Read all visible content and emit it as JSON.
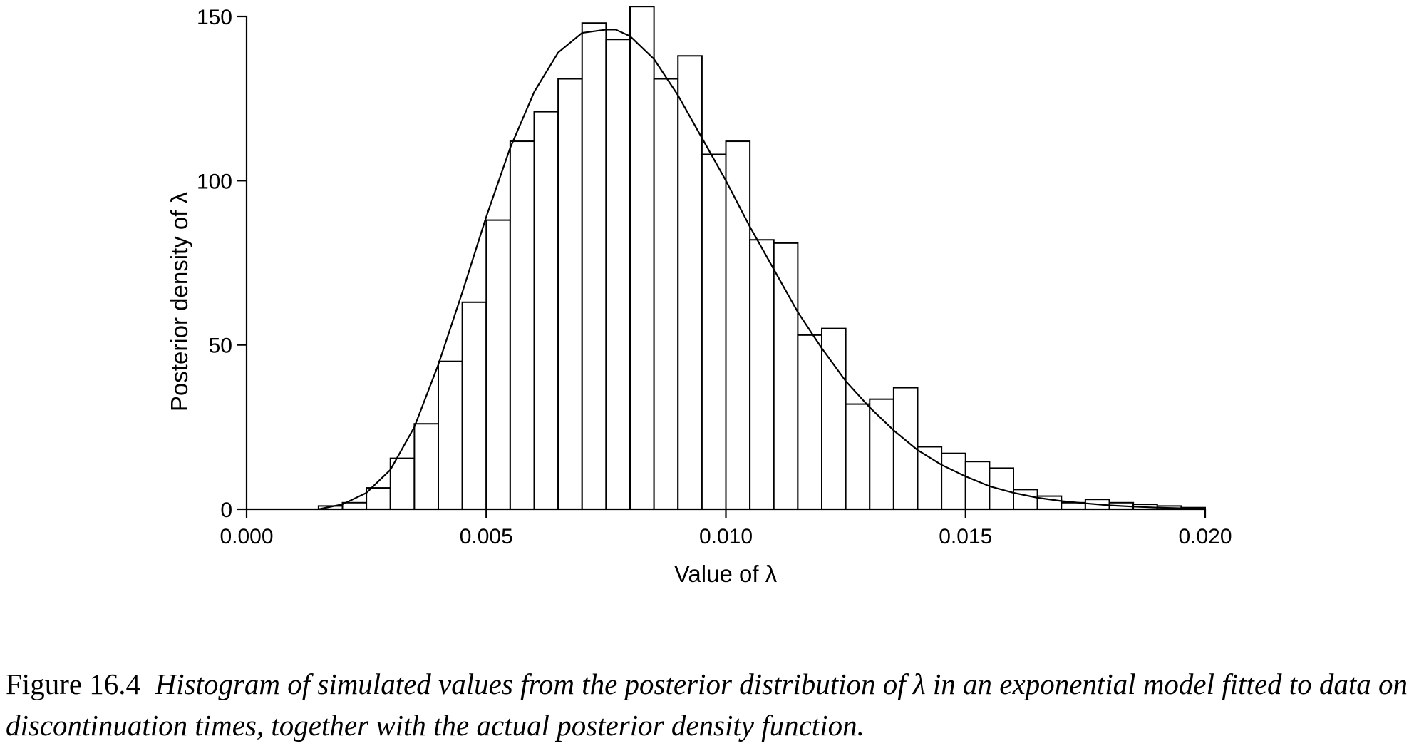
{
  "chart_data": {
    "type": "bar",
    "title": "",
    "xlabel": "Value of λ",
    "ylabel": "Posterior density of λ",
    "xlim": [
      0.0,
      0.02
    ],
    "ylim": [
      0,
      150
    ],
    "x_ticks": [
      "0.000",
      "0.005",
      "0.010",
      "0.015",
      "0.020"
    ],
    "x_tick_values": [
      0.0,
      0.005,
      0.01,
      0.015,
      0.02
    ],
    "y_ticks": [
      "0",
      "50",
      "100",
      "150"
    ],
    "y_tick_values": [
      0,
      50,
      100,
      150
    ],
    "grid": false,
    "bin_width": 0.0005,
    "bin_starts": [
      0.0015,
      0.002,
      0.0025,
      0.003,
      0.0035,
      0.004,
      0.0045,
      0.005,
      0.0055,
      0.006,
      0.0065,
      0.007,
      0.0075,
      0.008,
      0.0085,
      0.009,
      0.0095,
      0.01,
      0.0105,
      0.011,
      0.0115,
      0.012,
      0.0125,
      0.013,
      0.0135,
      0.014,
      0.0145,
      0.015,
      0.0155,
      0.016,
      0.0165,
      0.017,
      0.0175,
      0.018,
      0.0185,
      0.019,
      0.0195
    ],
    "values": [
      1,
      2,
      6.5,
      15.5,
      26,
      45,
      63,
      88,
      112,
      121,
      131,
      148,
      143,
      153,
      131,
      138,
      108,
      112,
      82,
      81,
      53,
      55,
      32,
      33.5,
      37,
      19,
      17,
      14.5,
      12.5,
      6,
      4,
      2,
      3,
      2,
      1.5,
      1,
      0.5
    ],
    "density_curve": {
      "x": [
        0.0015,
        0.002,
        0.0025,
        0.003,
        0.0035,
        0.004,
        0.0045,
        0.005,
        0.0055,
        0.006,
        0.0065,
        0.007,
        0.0075,
        0.0077,
        0.008,
        0.0085,
        0.009,
        0.0095,
        0.01,
        0.0105,
        0.011,
        0.0115,
        0.012,
        0.0125,
        0.013,
        0.0135,
        0.014,
        0.0145,
        0.015,
        0.0155,
        0.016,
        0.0165,
        0.017,
        0.0175,
        0.018,
        0.0185,
        0.019,
        0.0195,
        0.02
      ],
      "y": [
        0,
        1.5,
        5,
        12,
        25,
        44,
        66,
        89,
        110,
        127,
        139,
        145,
        146,
        146,
        144,
        137,
        126,
        113,
        100,
        86,
        73,
        60,
        49,
        39,
        31,
        24,
        18,
        13.5,
        10,
        7,
        5,
        3.5,
        2.5,
        1.8,
        1.2,
        0.8,
        0.5,
        0.3,
        0.2
      ]
    }
  },
  "caption": {
    "figure_number": "Figure 16.4",
    "text": "Histogram of simulated values from the posterior distribution of λ in an exponential model fitted to data on discontinuation times, together with the actual posterior density function."
  }
}
